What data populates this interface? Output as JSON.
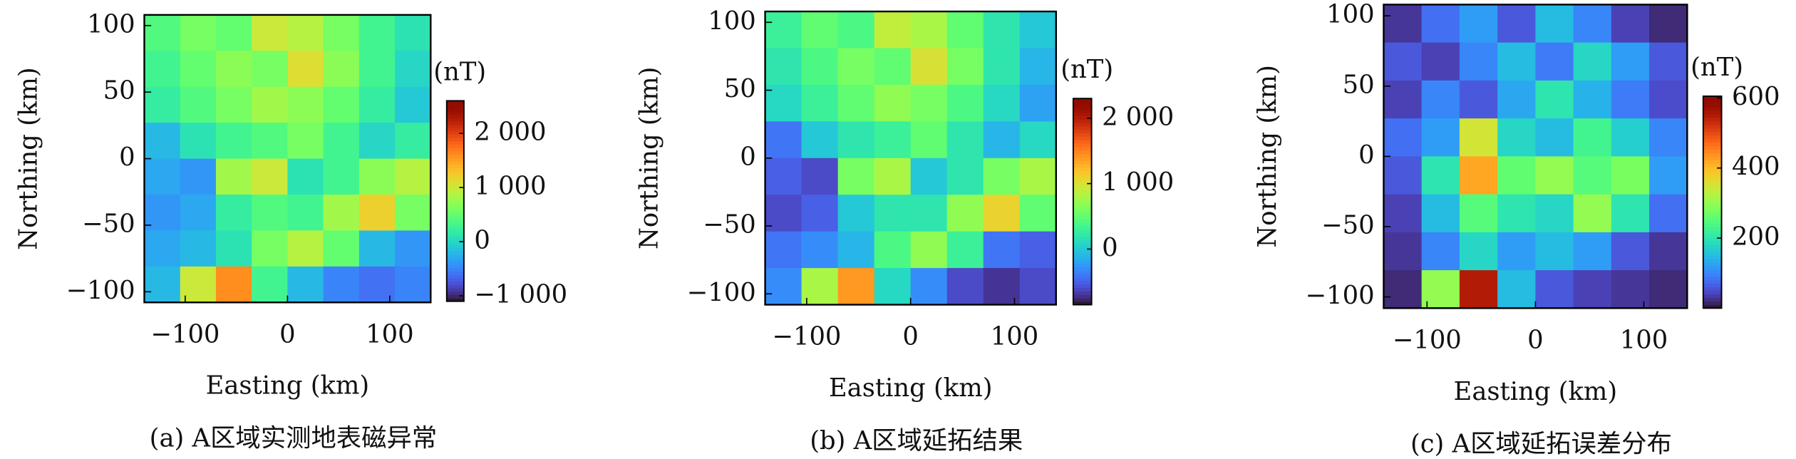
{
  "chart_data": [
    {
      "type": "heatmap",
      "title": "(a) A区域实测地表磁异常",
      "xlabel": "Easting (km)",
      "ylabel": "Northing (km)",
      "colormap": "turbo",
      "xlim": [
        -140,
        140
      ],
      "ylim": [
        -108,
        108
      ],
      "xticks": [
        {
          "value": -100,
          "label": "−100"
        },
        0,
        100
      ],
      "yticks": [
        {
          "value": -100,
          "label": "−100"
        },
        {
          "value": -50,
          "label": "−50"
        },
        0,
        50,
        100
      ],
      "x": [
        -122.5,
        -87.5,
        -52.5,
        -17.5,
        17.5,
        52.5,
        87.5,
        122.5
      ],
      "y": [
        94.5,
        67.5,
        40.5,
        13.5,
        -13.5,
        -40.5,
        -67.5,
        -94.5
      ],
      "z": [
        [
          400,
          600,
          500,
          1000,
          900,
          600,
          300,
          100
        ],
        [
          300,
          500,
          700,
          600,
          1100,
          700,
          300,
          0
        ],
        [
          200,
          400,
          600,
          800,
          700,
          500,
          200,
          -100
        ],
        [
          -200,
          100,
          300,
          400,
          600,
          300,
          0,
          200
        ],
        [
          -300,
          -400,
          800,
          1000,
          100,
          300,
          700,
          900
        ],
        [
          -400,
          -300,
          200,
          400,
          300,
          800,
          1200,
          600
        ],
        [
          -300,
          -200,
          100,
          600,
          900,
          500,
          -200,
          -400
        ],
        [
          -200,
          1000,
          1600,
          300,
          -200,
          -500,
          -600,
          -500
        ]
      ],
      "colorbar": {
        "label": "(nT)",
        "lim": [
          -1100,
          2600
        ],
        "ticks": [
          {
            "value": -1000,
            "label": "−1 000"
          },
          0,
          {
            "value": 1000,
            "label": "1 000"
          },
          {
            "value": 2000,
            "label": "2 000"
          }
        ]
      }
    },
    {
      "type": "heatmap",
      "title": "(b) A区域延拓结果",
      "xlabel": "Easting (km)",
      "ylabel": "Northing (km)",
      "colormap": "turbo",
      "xlim": [
        -140,
        140
      ],
      "ylim": [
        -108,
        108
      ],
      "xticks": [
        {
          "value": -100,
          "label": "−100"
        },
        0,
        100
      ],
      "yticks": [
        {
          "value": -100,
          "label": "−100"
        },
        {
          "value": -50,
          "label": "−50"
        },
        0,
        50,
        100
      ],
      "x": [
        -122.5,
        -87.5,
        -52.5,
        -17.5,
        17.5,
        52.5,
        87.5,
        122.5
      ],
      "y": [
        94.5,
        67.5,
        40.5,
        13.5,
        -13.5,
        -40.5,
        -67.5,
        -94.5
      ],
      "z": [
        [
          300,
          500,
          400,
          900,
          800,
          500,
          200,
          0
        ],
        [
          200,
          400,
          600,
          500,
          1000,
          600,
          200,
          -100
        ],
        [
          100,
          300,
          500,
          700,
          600,
          400,
          100,
          -200
        ],
        [
          -400,
          0,
          200,
          300,
          500,
          200,
          -100,
          100
        ],
        [
          -500,
          -600,
          600,
          800,
          0,
          200,
          600,
          800
        ],
        [
          -600,
          -500,
          0,
          200,
          200,
          700,
          1100,
          500
        ],
        [
          -400,
          -300,
          -100,
          400,
          700,
          300,
          -400,
          -500
        ],
        [
          -300,
          800,
          1400,
          100,
          -300,
          -600,
          -700,
          -600
        ]
      ],
      "colorbar": {
        "label": "(nT)",
        "lim": [
          -850,
          2300
        ],
        "ticks": [
          0,
          {
            "value": 1000,
            "label": "1 000"
          },
          {
            "value": 2000,
            "label": "2 000"
          }
        ]
      }
    },
    {
      "type": "heatmap",
      "title": "(c) A区域延拓误差分布",
      "xlabel": "Easting (km)",
      "ylabel": "Northing (km)",
      "colormap": "turbo",
      "xlim": [
        -140,
        140
      ],
      "ylim": [
        -108,
        108
      ],
      "xticks": [
        {
          "value": -100,
          "label": "−100"
        },
        0,
        100
      ],
      "yticks": [
        {
          "value": -100,
          "label": "−100"
        },
        {
          "value": -50,
          "label": "−50"
        },
        0,
        50,
        100
      ],
      "x": [
        -122.5,
        -87.5,
        -52.5,
        -17.5,
        17.5,
        52.5,
        87.5,
        122.5
      ],
      "y": [
        94.5,
        67.5,
        40.5,
        13.5,
        -13.5,
        -40.5,
        -67.5,
        -94.5
      ],
      "z": [
        [
          30,
          80,
          120,
          60,
          150,
          100,
          40,
          20
        ],
        [
          60,
          40,
          100,
          150,
          90,
          180,
          120,
          60
        ],
        [
          40,
          100,
          60,
          130,
          200,
          140,
          90,
          50
        ],
        [
          80,
          120,
          350,
          180,
          150,
          230,
          170,
          100
        ],
        [
          60,
          200,
          420,
          260,
          300,
          250,
          280,
          120
        ],
        [
          40,
          150,
          250,
          200,
          180,
          300,
          200,
          80
        ],
        [
          30,
          100,
          180,
          120,
          150,
          120,
          60,
          30
        ],
        [
          20,
          300,
          550,
          150,
          60,
          40,
          30,
          20
        ]
      ],
      "colorbar": {
        "label": "(nT)",
        "lim": [
          0,
          605
        ],
        "ticks": [
          200,
          400,
          600
        ]
      }
    }
  ]
}
